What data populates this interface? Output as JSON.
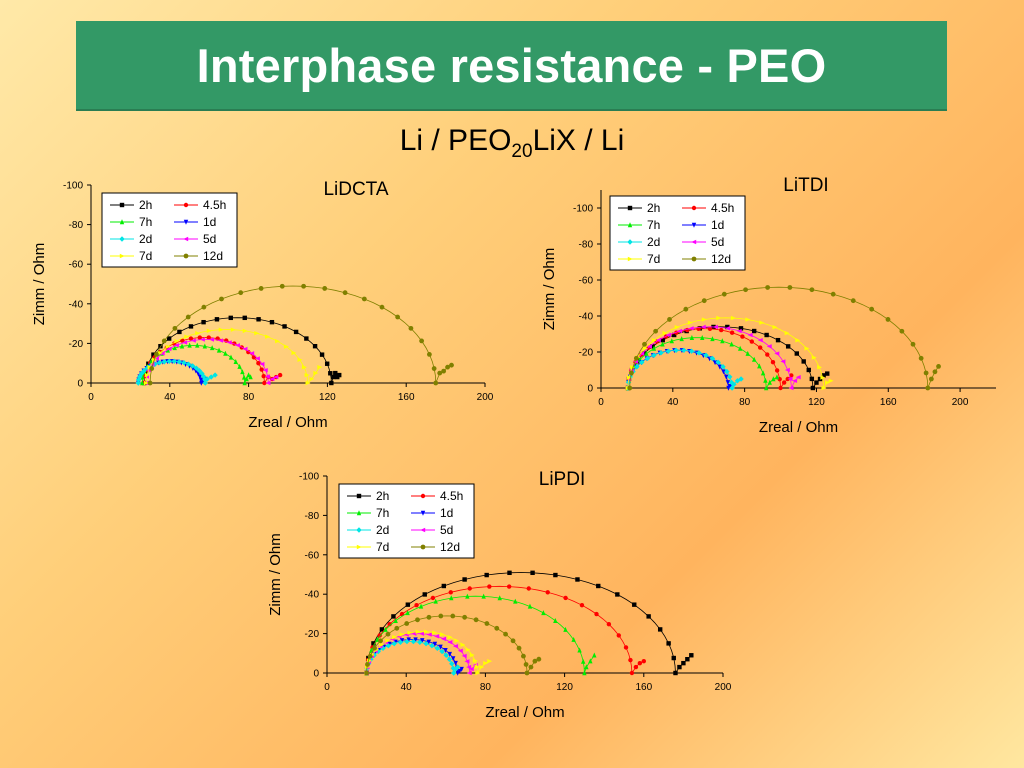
{
  "slide": {
    "title": "Interphase resistance - PEO",
    "subtitle_main": "Li / PEO",
    "subtitle_sub": "20",
    "subtitle_end": "LiX / Li",
    "accent_color": "#339966"
  },
  "chart_data": [
    {
      "type": "scatter",
      "title": "LiDCTA",
      "xlabel": "Zreal / Ohm",
      "ylabel": "Zimm / Ohm",
      "xlim": [
        0,
        200
      ],
      "ylim": [
        0,
        -100
      ],
      "x_ticks": [
        "0",
        "40",
        "80",
        "120",
        "160",
        "200"
      ],
      "y_ticks": [
        "0",
        "-20",
        "-40",
        "-60",
        "-80",
        "-100"
      ],
      "legend_position": "top-left",
      "series": [
        {
          "name": "2h",
          "color": "#000000",
          "marker": "square",
          "arc": {
            "x_start": 27,
            "x_end": 122,
            "peak": -33
          },
          "tail": [
            [
              123,
              -3
            ],
            [
              124,
              -5
            ],
            [
              125,
              -3
            ],
            [
              126,
              -4
            ]
          ]
        },
        {
          "name": "4.5h",
          "color": "#ff0000",
          "marker": "circle",
          "arc": {
            "x_start": 27,
            "x_end": 88,
            "peak": -23
          },
          "tail": [
            [
              90,
              -3
            ],
            [
              92,
              -2
            ],
            [
              94,
              -3
            ],
            [
              96,
              -4
            ]
          ]
        },
        {
          "name": "7h",
          "color": "#00ee00",
          "marker": "triangle-up",
          "arc": {
            "x_start": 26,
            "x_end": 78,
            "peak": -19
          },
          "tail": [
            [
              79,
              -2
            ],
            [
              80,
              -4
            ],
            [
              81,
              -3
            ]
          ]
        },
        {
          "name": "1d",
          "color": "#0000ff",
          "marker": "triangle-down",
          "arc": {
            "x_start": 24,
            "x_end": 56,
            "peak": -11
          },
          "tail": [
            [
              57,
              -1
            ],
            [
              58,
              -2
            ]
          ]
        },
        {
          "name": "2d",
          "color": "#00e5e5",
          "marker": "diamond",
          "arc": {
            "x_start": 24,
            "x_end": 58,
            "peak": -11
          },
          "tail": [
            [
              59,
              -2
            ],
            [
              61,
              -3
            ],
            [
              63,
              -4
            ]
          ]
        },
        {
          "name": "5d",
          "color": "#ff00ff",
          "marker": "triangle-left",
          "arc": {
            "x_start": 28,
            "x_end": 90,
            "peak": -22
          },
          "tail": [
            [
              92,
              -2
            ],
            [
              94,
              -3
            ]
          ]
        },
        {
          "name": "7d",
          "color": "#ffff00",
          "marker": "triangle-right",
          "arc": {
            "x_start": 28,
            "x_end": 110,
            "peak": -27
          },
          "tail": [
            [
              112,
              -2
            ],
            [
              114,
              -5
            ],
            [
              116,
              -8
            ]
          ]
        },
        {
          "name": "12d",
          "color": "#808000",
          "marker": "hexagon",
          "arc": {
            "x_start": 30,
            "x_end": 175,
            "peak": -49
          },
          "tail": [
            [
              177,
              -5
            ],
            [
              179,
              -6
            ],
            [
              181,
              -8
            ],
            [
              183,
              -9
            ]
          ]
        }
      ]
    },
    {
      "type": "scatter",
      "title": "LiTDI",
      "xlabel": "Zreal / Ohm",
      "ylabel": "Zimm / Ohm",
      "xlim": [
        0,
        220
      ],
      "ylim": [
        0,
        -110
      ],
      "x_ticks": [
        "0",
        "40",
        "80",
        "120",
        "160",
        "200"
      ],
      "y_ticks": [
        "0",
        "-20",
        "-40",
        "-60",
        "-80",
        "-100"
      ],
      "legend_position": "top-left",
      "series": [
        {
          "name": "2h",
          "color": "#000000",
          "marker": "square",
          "arc": {
            "x_start": 15,
            "x_end": 118,
            "peak": -34
          },
          "tail": [
            [
              120,
              -3
            ],
            [
              122,
              -5
            ],
            [
              124,
              -7
            ],
            [
              126,
              -8
            ]
          ]
        },
        {
          "name": "4.5h",
          "color": "#ff0000",
          "marker": "circle",
          "arc": {
            "x_start": 15,
            "x_end": 100,
            "peak": -33
          },
          "tail": [
            [
              102,
              -3
            ],
            [
              104,
              -5
            ],
            [
              106,
              -7
            ]
          ]
        },
        {
          "name": "7h",
          "color": "#00ee00",
          "marker": "triangle-up",
          "arc": {
            "x_start": 15,
            "x_end": 92,
            "peak": -28
          },
          "tail": [
            [
              94,
              -3
            ],
            [
              96,
              -5
            ],
            [
              98,
              -6
            ]
          ]
        },
        {
          "name": "1d",
          "color": "#0000ff",
          "marker": "triangle-down",
          "arc": {
            "x_start": 15,
            "x_end": 71,
            "peak": -21
          },
          "tail": [
            [
              72,
              -1
            ],
            [
              73,
              -2
            ]
          ]
        },
        {
          "name": "2d",
          "color": "#00e5e5",
          "marker": "diamond",
          "arc": {
            "x_start": 15,
            "x_end": 73,
            "peak": -21
          },
          "tail": [
            [
              74,
              -2
            ],
            [
              76,
              -4
            ],
            [
              78,
              -5
            ]
          ]
        },
        {
          "name": "5d",
          "color": "#ff00ff",
          "marker": "triangle-left",
          "arc": {
            "x_start": 15,
            "x_end": 106,
            "peak": -34
          },
          "tail": [
            [
              108,
              -4
            ],
            [
              110,
              -6
            ]
          ]
        },
        {
          "name": "7d",
          "color": "#ffff00",
          "marker": "triangle-right",
          "arc": {
            "x_start": 15,
            "x_end": 124,
            "peak": -39
          },
          "tail": [
            [
              126,
              -3
            ],
            [
              128,
              -4
            ]
          ]
        },
        {
          "name": "12d",
          "color": "#808000",
          "marker": "hexagon",
          "arc": {
            "x_start": 16,
            "x_end": 182,
            "peak": -56
          },
          "tail": [
            [
              184,
              -5
            ],
            [
              186,
              -9
            ],
            [
              188,
              -12
            ]
          ]
        }
      ]
    },
    {
      "type": "scatter",
      "title": "LiPDI",
      "xlabel": "Zreal / Ohm",
      "ylabel": "Zimm / Ohm",
      "xlim": [
        0,
        200
      ],
      "ylim": [
        0,
        -100
      ],
      "x_ticks": [
        "0",
        "40",
        "80",
        "120",
        "160",
        "200"
      ],
      "y_ticks": [
        "0",
        "-20",
        "-40",
        "-60",
        "-80",
        "-100"
      ],
      "legend_position": "top-left",
      "series": [
        {
          "name": "2h",
          "color": "#000000",
          "marker": "square",
          "arc": {
            "x_start": 20,
            "x_end": 176,
            "peak": -51
          },
          "tail": [
            [
              178,
              -3
            ],
            [
              180,
              -5
            ],
            [
              182,
              -7
            ],
            [
              184,
              -9
            ]
          ]
        },
        {
          "name": "4.5h",
          "color": "#ff0000",
          "marker": "circle",
          "arc": {
            "x_start": 20,
            "x_end": 154,
            "peak": -44
          },
          "tail": [
            [
              156,
              -3
            ],
            [
              158,
              -5
            ],
            [
              160,
              -6
            ]
          ]
        },
        {
          "name": "7h",
          "color": "#00ee00",
          "marker": "triangle-up",
          "arc": {
            "x_start": 20,
            "x_end": 130,
            "peak": -39
          },
          "tail": [
            [
              131,
              -3
            ],
            [
              133,
              -6
            ],
            [
              135,
              -9
            ]
          ]
        },
        {
          "name": "1d",
          "color": "#0000ff",
          "marker": "triangle-down",
          "arc": {
            "x_start": 20,
            "x_end": 66,
            "peak": -17
          },
          "tail": [
            [
              67,
              -1
            ],
            [
              68,
              -2
            ]
          ]
        },
        {
          "name": "2d",
          "color": "#00e5e5",
          "marker": "diamond",
          "arc": {
            "x_start": 20,
            "x_end": 64,
            "peak": -16
          },
          "tail": [
            [
              65,
              -2
            ],
            [
              66,
              -3
            ]
          ]
        },
        {
          "name": "5d",
          "color": "#ff00ff",
          "marker": "triangle-left",
          "arc": {
            "x_start": 20,
            "x_end": 72,
            "peak": -20
          },
          "tail": [
            [
              73,
              -2
            ],
            [
              75,
              -4
            ]
          ]
        },
        {
          "name": "7d",
          "color": "#ffff00",
          "marker": "triangle-right",
          "arc": {
            "x_start": 20,
            "x_end": 76,
            "peak": -21
          },
          "tail": [
            [
              78,
              -3
            ],
            [
              80,
              -5
            ],
            [
              82,
              -6
            ]
          ]
        },
        {
          "name": "12d",
          "color": "#808000",
          "marker": "hexagon",
          "arc": {
            "x_start": 20,
            "x_end": 101,
            "peak": -29
          },
          "tail": [
            [
              103,
              -3
            ],
            [
              105,
              -6
            ],
            [
              107,
              -7
            ]
          ]
        }
      ]
    }
  ]
}
